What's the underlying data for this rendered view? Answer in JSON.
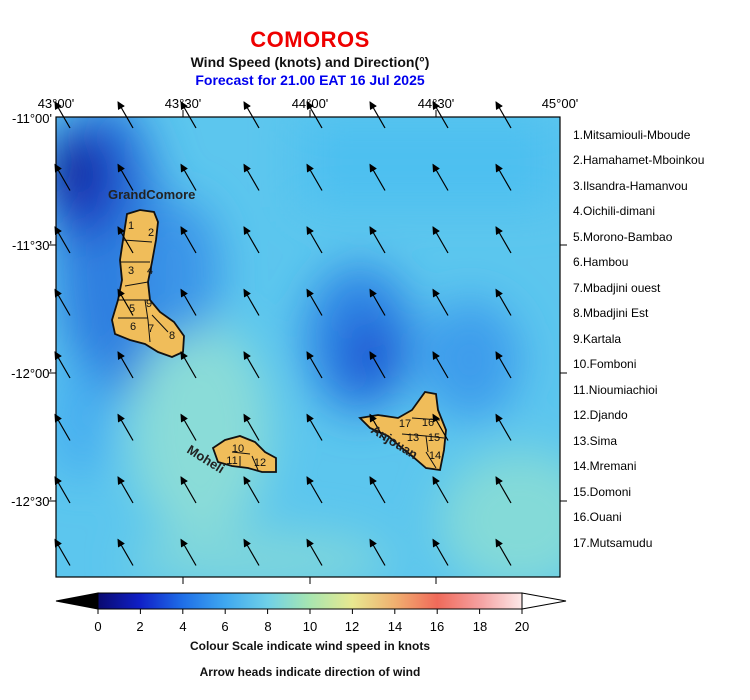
{
  "title": "COMOROS",
  "subtitle": "Wind Speed (knots) and Direction(°)",
  "forecast": "Forecast for  21.00 EAT 16 Jul 2025",
  "lon_labels": [
    "43°00'",
    "43°30'",
    "44°00'",
    "44°30'",
    "45°00'"
  ],
  "lat_labels": [
    "-11°00'",
    "-11°30'",
    "-12°00'",
    "-12°30'"
  ],
  "islands": {
    "grand_comore": "GrandComore",
    "moheli": "Moheli",
    "anjouan": "Anjouan"
  },
  "region_numbers": [
    "1",
    "2",
    "3",
    "4",
    "5",
    "6",
    "7",
    "8",
    "9",
    "10",
    "11",
    "12",
    "13",
    "14",
    "15",
    "16",
    "17"
  ],
  "regions": [
    "1.Mitsamiouli-Mboude",
    "2.Hamahamet-Mboinkou",
    "3.Ilsandra-Hamanvou",
    "4.Oichili-dimani",
    "5.Morono-Bambao",
    "6.Hambou",
    "7.Mbadjini ouest",
    "8.Mbadjini Est",
    "9.Kartala",
    "10.Fomboni",
    "11.Nioumiachioi",
    "12.Djando",
    "13.Sima",
    "14.Mremani",
    "15.Domoni",
    "16.Ouani",
    "17.Mutsamudu"
  ],
  "colorbar": {
    "ticks": [
      "0",
      "2",
      "4",
      "6",
      "8",
      "10",
      "12",
      "14",
      "16",
      "18",
      "20"
    ],
    "min": 0,
    "max": 20,
    "colors": [
      "#0a0a70",
      "#1020c8",
      "#1f6fe8",
      "#3fa8f0",
      "#6fd0e8",
      "#a8e6b0",
      "#e8e890",
      "#f0b070",
      "#f06a5a",
      "#f4a0a0",
      "#fde8e8"
    ]
  },
  "caption1": "Colour Scale indicate wind speed in knots",
  "caption2": "Arrow heads indicate direction of wind",
  "wind_direction_deg": 150,
  "land_color": "#f0bd5a"
}
